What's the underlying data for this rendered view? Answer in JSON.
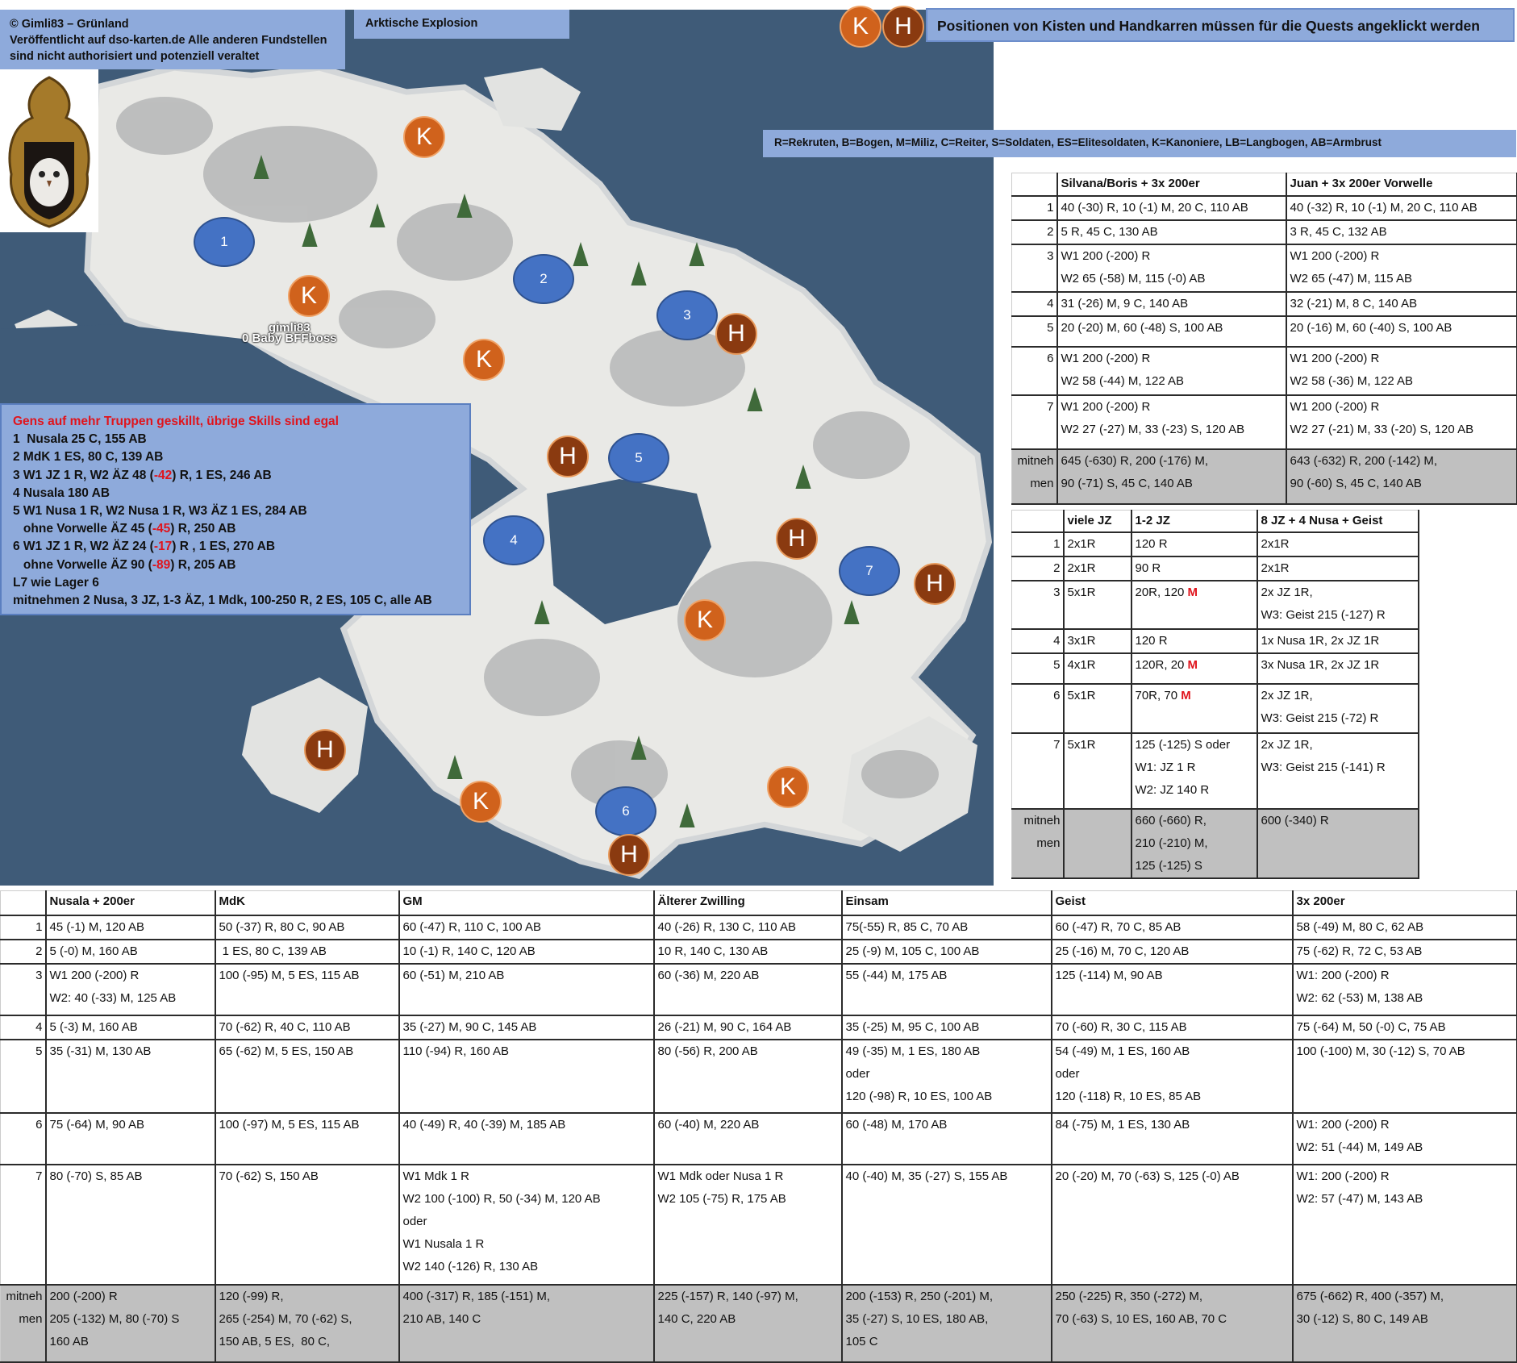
{
  "header": {
    "credits_lines": [
      "© Gimli83 – Grünland",
      "Veröffentlicht auf dso-karten.de Alle anderen Fundstellen",
      "sind nicht authorisiert und potenziell veraltet"
    ],
    "adventure_title": "Arktische Explosion",
    "marker_note": "Positionen von Kisten und Handkarren müssen für die Quests angeklickt werden",
    "unit_legend": "R=Rekruten, B=Bogen, M=Miliz, C=Reiter, S=Soldaten, ES=Elitesoldaten, K=Kanoniere, LB=Langbogen, AB=Armbrust"
  },
  "colors": {
    "water": "#3f5b78",
    "box": "#8eaadb",
    "kiste": "#d0621c",
    "handkarre": "#8a3a10",
    "camp": "#4472c4",
    "loss_red": "#e0141c",
    "total_row": "#c0c0c0"
  },
  "markers": {
    "kiste": "K",
    "handkarre": "H",
    "camps": [
      "1",
      "2",
      "3",
      "4",
      "5",
      "6",
      "7"
    ]
  },
  "map_labels": {
    "player": "gimli83",
    "building": "0 Baby BFFboss"
  },
  "strategy": {
    "title": "Gens auf mehr Truppen geskillt, übrige Skills sind egal",
    "lines": [
      "1  Nusala 25 C, 155 AB",
      "2 MdK 1 ES, 80 C, 139 AB",
      "3 W1 JZ 1 R, W2 ÄZ 48 (-42) R, 1 ES, 246 AB",
      "4 Nusala 180 AB",
      "5 W1 Nusa 1 R, W2 Nusa 1 R, W3 ÄZ 1 ES, 284 AB",
      "   ohne Vorwelle ÄZ 45 (-45) R, 250 AB",
      "6 W1 JZ 1 R, W2 ÄZ 24 (-17) R , 1 ES, 270 AB",
      "   ohne Vorwelle ÄZ 90 (-89) R, 205 AB",
      "L7 wie Lager 6",
      "mitnehmen 2 Nusa, 3 JZ, 1-3 ÄZ, 1 Mdk, 100-250 R, 2 ES, 105 C, alle AB"
    ]
  },
  "t1": {
    "headers": [
      "",
      "Silvana/Boris  + 3x 200er",
      "Juan + 3x 200er Vorwelle"
    ],
    "rows": [
      {
        "label": "1",
        "cells": [
          {
            "lines": [
              "40 (-30) R, 10 (-1) M, 20 C, 110 AB"
            ]
          },
          {
            "lines": [
              "40 (-32) R, 10 (-1) M, 20 C, 110 AB"
            ]
          }
        ]
      },
      {
        "label": "2",
        "cells": [
          {
            "lines": [
              "5 R, 45 C, 130 AB"
            ]
          },
          {
            "lines": [
              "3 R, 45 C, 132 AB"
            ]
          }
        ]
      },
      {
        "label": "3",
        "cells": [
          {
            "lines": [
              "W1 200 (-200) R",
              "W2 65 (-58) M, 115 (-0) AB"
            ],
            "hl": [
              "M"
            ]
          },
          {
            "lines": [
              "W1 200 (-200) R",
              "W2 65 (-47) M, 115 AB"
            ],
            "hl": [
              "M"
            ]
          }
        ]
      },
      {
        "label": "4",
        "cells": [
          {
            "lines": [
              "31 (-26) M, 9 C, 140 AB"
            ],
            "hl": [
              "M"
            ]
          },
          {
            "lines": [
              "32 (-21) M, 8 C, 140 AB"
            ],
            "hl": [
              "M"
            ]
          }
        ]
      },
      {
        "label": "5",
        "cells": [
          {
            "lines": [
              "20 (-20) M, 60 (-48) S, 100 AB"
            ],
            "hl": [
              "M"
            ]
          },
          {
            "lines": [
              "20 (-16) M, 60 (-40) S, 100 AB"
            ],
            "hl": [
              "M"
            ]
          }
        ]
      },
      {
        "label": "6",
        "cells": [
          {
            "lines": [
              "W1 200 (-200) R",
              "W2 58 (-44) M, 122 AB"
            ],
            "hl": [
              "M"
            ]
          },
          {
            "lines": [
              "W1 200 (-200) R",
              "W2 58 (-36) M, 122 AB"
            ],
            "hl": [
              "M"
            ]
          }
        ]
      },
      {
        "label": "7",
        "cells": [
          {
            "lines": [
              "W1 200 (-200) R",
              "W2 27 (-27) M, 33 (-23) S, 120 AB"
            ],
            "hl": [
              "M"
            ]
          },
          {
            "lines": [
              "W1 200 (-200) R",
              "W2 27 (-21) M, 33 (-20) S, 120 AB"
            ],
            "hl": [
              "M"
            ]
          }
        ]
      },
      {
        "label": "mitnehmen",
        "total": true,
        "cells": [
          {
            "lines": [
              "645 (-630) R, 200 (-176) M,",
              "90 (-71) S, 45 C, 140 AB"
            ]
          },
          {
            "lines": [
              "643 (-632) R, 200 (-142) M,",
              "90 (-60) S, 45 C, 140 AB"
            ]
          }
        ]
      }
    ]
  },
  "t2": {
    "headers": [
      "",
      "viele JZ",
      "1-2 JZ",
      "8 JZ + 4 Nusa + Geist"
    ],
    "rows": [
      {
        "label": "1",
        "cells": [
          {
            "lines": [
              "2x1R"
            ]
          },
          {
            "lines": [
              "120 R"
            ]
          },
          {
            "lines": [
              "2x1R"
            ]
          }
        ]
      },
      {
        "label": "2",
        "cells": [
          {
            "lines": [
              "2x1R"
            ]
          },
          {
            "lines": [
              "90 R"
            ]
          },
          {
            "lines": [
              "2x1R"
            ]
          }
        ]
      },
      {
        "label": "3",
        "cells": [
          {
            "lines": [
              "5x1R"
            ]
          },
          {
            "lines": [
              "20R, 120 M"
            ],
            "hl": [
              "M"
            ]
          },
          {
            "lines": [
              "2x JZ 1R,",
              "W3: Geist 215 (-127) R"
            ]
          }
        ]
      },
      {
        "label": "4",
        "cells": [
          {
            "lines": [
              "3x1R"
            ]
          },
          {
            "lines": [
              "120 R"
            ]
          },
          {
            "lines": [
              "1x Nusa 1R, 2x JZ 1R"
            ]
          }
        ]
      },
      {
        "label": "5",
        "cells": [
          {
            "lines": [
              "4x1R"
            ]
          },
          {
            "lines": [
              "120R, 20 M"
            ],
            "hl": [
              "M"
            ]
          },
          {
            "lines": [
              "3x Nusa 1R, 2x JZ 1R"
            ]
          }
        ]
      },
      {
        "label": "6",
        "cells": [
          {
            "lines": [
              "5x1R"
            ]
          },
          {
            "lines": [
              "70R, 70 M"
            ],
            "hl": [
              "M"
            ]
          },
          {
            "lines": [
              "2x JZ 1R,",
              "W3: Geist 215 (-72) R"
            ]
          }
        ]
      },
      {
        "label": "7",
        "cells": [
          {
            "lines": [
              "5x1R"
            ]
          },
          {
            "lines": [
              "125 (-125) S oder",
              "W1: JZ 1 R",
              "W2: JZ 140 R"
            ],
            "hl": [
              "S"
            ]
          },
          {
            "lines": [
              "2x JZ 1R,",
              "W3: Geist 215 (-141) R"
            ]
          }
        ]
      },
      {
        "label": "mitnehmen",
        "total": true,
        "cells": [
          {
            "lines": [
              ""
            ]
          },
          {
            "lines": [
              "660 (-660) R,",
              "210 (-210) M,",
              "125 (-125) S"
            ]
          },
          {
            "lines": [
              "600 (-340) R"
            ]
          }
        ]
      }
    ]
  },
  "t3": {
    "headers": [
      "",
      "Nusala + 200er",
      "MdK",
      "GM",
      "Älterer Zwilling",
      "Einsam",
      "Geist",
      "3x 200er"
    ],
    "rows": [
      {
        "label": "1",
        "cells": [
          {
            "lines": [
              "45 (-1) M, 120 AB"
            ],
            "hl": [
              "M"
            ]
          },
          {
            "lines": [
              "50 (-37) R, 80 C, 90 AB"
            ]
          },
          {
            "lines": [
              "60 (-47) R, 110 C, 100 AB"
            ]
          },
          {
            "lines": [
              "40 (-26) R, 130 C, 110 AB"
            ]
          },
          {
            "lines": [
              "75(-55) R, 85 C, 70 AB"
            ]
          },
          {
            "lines": [
              "60 (-47) R, 70 C, 85 AB"
            ]
          },
          {
            "lines": [
              "58 (-49) M, 80 C, 62 AB"
            ],
            "hl": [
              "M"
            ]
          }
        ]
      },
      {
        "label": "2",
        "cells": [
          {
            "lines": [
              "5 (-0) M, 160 AB"
            ],
            "hl": [
              "M"
            ]
          },
          {
            "lines": [
              " 1 ES, 80 C, 139 AB"
            ]
          },
          {
            "lines": [
              "10 (-1) R, 140 C, 120 AB"
            ]
          },
          {
            "lines": [
              "10 R, 140 C, 130 AB"
            ]
          },
          {
            "lines": [
              "25 (-9) M, 105 C, 100 AB"
            ],
            "hl": [
              "M"
            ]
          },
          {
            "lines": [
              "25 (-16) M, 70 C, 120 AB"
            ],
            "hl": [
              "M"
            ]
          },
          {
            "lines": [
              "75 (-62) R, 72 C, 53 AB"
            ]
          }
        ]
      },
      {
        "label": "3",
        "cells": [
          {
            "lines": [
              "W1 200 (-200) R",
              "W2: 40 (-33) M, 125 AB"
            ],
            "hl": [
              "M"
            ]
          },
          {
            "lines": [
              "100 (-95) M, 5 ES, 115 AB"
            ]
          },
          {
            "lines": [
              "60 (-51) M, 210 AB"
            ],
            "hl": [
              "M"
            ]
          },
          {
            "lines": [
              "60 (-36) M, 220 AB"
            ],
            "hl": [
              "M"
            ]
          },
          {
            "lines": [
              "55 (-44) M, 175 AB"
            ],
            "hl": [
              "M"
            ]
          },
          {
            "lines": [
              "125 (-114) M, 90 AB"
            ],
            "hl": [
              "M"
            ]
          },
          {
            "lines": [
              "W1: 200 (-200) R",
              "W2: 62 (-53) M, 138 AB"
            ],
            "hl": [
              "M"
            ]
          }
        ]
      },
      {
        "label": "4",
        "cells": [
          {
            "lines": [
              "5 (-3) M, 160 AB"
            ],
            "hl": [
              "M"
            ]
          },
          {
            "lines": [
              "70 (-62) R, 40 C, 110 AB"
            ]
          },
          {
            "lines": [
              "35 (-27) M, 90 C, 145 AB"
            ],
            "hl": [
              "M"
            ]
          },
          {
            "lines": [
              "26 (-21) M, 90 C, 164 AB"
            ],
            "hl": [
              "M"
            ]
          },
          {
            "lines": [
              "35 (-25) M, 95 C, 100 AB"
            ],
            "hl": [
              "M"
            ]
          },
          {
            "lines": [
              "70 (-60) R, 30 C, 115 AB"
            ]
          },
          {
            "lines": [
              "75 (-64) M, 50 (-0) C, 75 AB"
            ],
            "hl": [
              "M"
            ]
          }
        ]
      },
      {
        "label": "5",
        "cells": [
          {
            "lines": [
              "35 (-31) M, 130 AB"
            ],
            "hl": [
              "M"
            ]
          },
          {
            "lines": [
              "65 (-62) M, 5 ES, 150 AB"
            ]
          },
          {
            "lines": [
              "110 (-94) R, 160 AB"
            ]
          },
          {
            "lines": [
              "80 (-56) R, 200 AB"
            ]
          },
          {
            "lines": [
              "49 (-35) M, 1 ES, 180 AB",
              "oder",
              "120 (-98) R, 10 ES, 100 AB"
            ],
            "hl": [
              "M"
            ]
          },
          {
            "lines": [
              "54 (-49) M, 1 ES, 160 AB",
              "oder",
              "120 (-118) R, 10 ES, 85 AB"
            ],
            "hl": [
              "M"
            ]
          },
          {
            "lines": [
              "100 (-100) M, 30 (-12) S, 70 AB"
            ],
            "hl": [
              "M"
            ]
          }
        ]
      },
      {
        "label": "6",
        "cells": [
          {
            "lines": [
              "75 (-64) M, 90 AB"
            ],
            "hl": [
              "M"
            ]
          },
          {
            "lines": [
              "100 (-97) M, 5 ES, 115 AB"
            ]
          },
          {
            "lines": [
              "40 (-49) R, 40 (-39) M, 185 AB"
            ]
          },
          {
            "lines": [
              "60 (-40) M, 220 AB"
            ],
            "hl": [
              "M"
            ]
          },
          {
            "lines": [
              "60 (-48) M, 170 AB"
            ],
            "hl": [
              "M"
            ]
          },
          {
            "lines": [
              "84 (-75) M, 1 ES, 130 AB"
            ],
            "hl": [
              "M"
            ]
          },
          {
            "lines": [
              "W1: 200 (-200) R",
              "W2: 51 (-44) M, 149 AB"
            ],
            "hl": [
              "M"
            ]
          }
        ]
      },
      {
        "label": "7",
        "cells": [
          {
            "lines": [
              "80 (-70) S, 85 AB"
            ],
            "hl": [
              "S"
            ]
          },
          {
            "lines": [
              "70 (-62) S, 150 AB"
            ],
            "hl": [
              "S"
            ]
          },
          {
            "lines": [
              "W1 Mdk 1 R",
              "W2 100 (-100) R, 50 (-34) M, 120 AB",
              "oder",
              "W1 Nusala 1 R",
              "W2 140 (-126) R, 130 AB"
            ]
          },
          {
            "lines": [
              "W1 Mdk oder Nusa 1 R",
              "W2 105 (-75) R, 175 AB"
            ]
          },
          {
            "lines": [
              "40 (-40) M, 35 (-27) S, 155 AB"
            ],
            "hl": [
              "M",
              "S"
            ]
          },
          {
            "lines": [
              "20 (-20) M, 70 (-63) S, 125 (-0) AB"
            ],
            "hl": [
              "M"
            ]
          },
          {
            "lines": [
              "W1: 200 (-200) R",
              "W2: 57 (-47) M, 143 AB"
            ],
            "hl": [
              "M"
            ]
          }
        ]
      },
      {
        "label": "mitnehmen",
        "total": true,
        "cells": [
          {
            "lines": [
              "200 (-200) R",
              "205 (-132) M, 80 (-70) S",
              "160 AB"
            ]
          },
          {
            "lines": [
              "120 (-99) R,",
              "265 (-254) M, 70 (-62) S,",
              "150 AB, 5 ES,  80 C,"
            ]
          },
          {
            "lines": [
              "400 (-317) R, 185 (-151) M,",
              "210 AB, 140 C"
            ]
          },
          {
            "lines": [
              "225 (-157) R, 140 (-97) M,",
              "140 C, 220 AB"
            ]
          },
          {
            "lines": [
              "200 (-153) R, 250 (-201) M,",
              "35 (-27) S, 10 ES, 180 AB,",
              "105 C"
            ]
          },
          {
            "lines": [
              "250 (-225) R, 350 (-272) M,",
              "70 (-63) S, 10 ES, 160 AB, 70 C"
            ]
          },
          {
            "lines": [
              "675 (-662) R, 400 (-357) M,",
              "30 (-12) S, 80 C, 149 AB"
            ]
          }
        ]
      }
    ]
  }
}
